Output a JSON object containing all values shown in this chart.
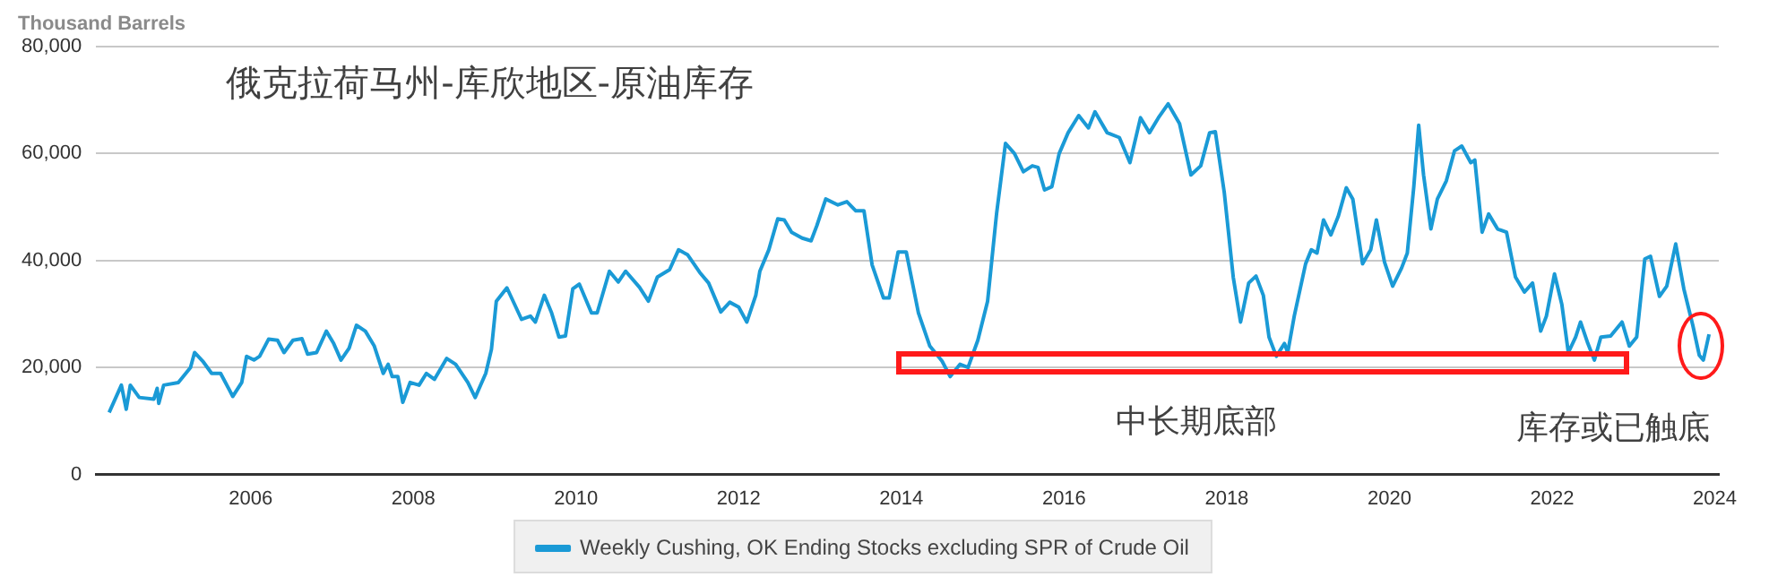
{
  "chart_data": {
    "type": "line",
    "title": "俄克拉荷马州-库欣地区-原油库存",
    "ylabel": "Thousand Barrels",
    "annotations": [
      "中长期底部",
      "库存或已触底"
    ],
    "xlim": [
      2004.1,
      2024.05
    ],
    "xticks": [
      2006,
      2008,
      2010,
      2012,
      2014,
      2016,
      2018,
      2020,
      2022,
      2024
    ],
    "ylim": [
      0,
      80000
    ],
    "yticks": [
      {
        "value": 0,
        "label": "0"
      },
      {
        "value": 20000,
        "label": "20,000"
      },
      {
        "value": 40000,
        "label": "40,000"
      },
      {
        "value": 60000,
        "label": "60,000"
      },
      {
        "value": 80000,
        "label": "80,000"
      }
    ],
    "grid": "y",
    "legend": "bottom",
    "marker": "none",
    "line_style": "solid",
    "series": [
      {
        "name": "Weekly Cushing, OK Ending Stocks excluding SPR of Crude Oil",
        "color": "#1a9ad6",
        "x": [
          2004.26,
          2004.41,
          2004.47,
          2004.52,
          2004.63,
          2004.81,
          2004.85,
          2004.87,
          2004.93,
          2005.11,
          2005.26,
          2005.31,
          2005.41,
          2005.52,
          2005.63,
          2005.78,
          2005.89,
          2005.95,
          2006.04,
          2006.11,
          2006.22,
          2006.33,
          2006.41,
          2006.52,
          2006.63,
          2006.7,
          2006.81,
          2006.93,
          2007.02,
          2007.11,
          2007.21,
          2007.3,
          2007.41,
          2007.52,
          2007.63,
          2007.69,
          2007.74,
          2007.81,
          2007.87,
          2007.96,
          2008.07,
          2008.16,
          2008.26,
          2008.41,
          2008.52,
          2008.67,
          2008.76,
          2008.89,
          2008.96,
          2009.02,
          2009.15,
          2009.26,
          2009.33,
          2009.44,
          2009.5,
          2009.61,
          2009.7,
          2009.79,
          2009.87,
          2009.96,
          2010.04,
          2010.19,
          2010.26,
          2010.41,
          2010.52,
          2010.61,
          2010.78,
          2010.89,
          2011.0,
          2011.15,
          2011.26,
          2011.37,
          2011.52,
          2011.63,
          2011.78,
          2011.89,
          2012.0,
          2012.1,
          2012.21,
          2012.26,
          2012.37,
          2012.48,
          2012.56,
          2012.65,
          2012.78,
          2012.89,
          2012.96,
          2013.07,
          2013.22,
          2013.33,
          2013.44,
          2013.54,
          2013.64,
          2013.78,
          2013.85,
          2013.96,
          2014.06,
          2014.21,
          2014.35,
          2014.5,
          2014.6,
          2014.72,
          2014.82,
          2014.94,
          2015.06,
          2015.17,
          2015.28,
          2015.39,
          2015.5,
          2015.61,
          2015.68,
          2015.76,
          2015.85,
          2015.94,
          2016.05,
          2016.18,
          2016.3,
          2016.38,
          2016.53,
          2016.68,
          2016.81,
          2016.94,
          2017.05,
          2017.16,
          2017.28,
          2017.42,
          2017.56,
          2017.68,
          2017.79,
          2017.86,
          2017.97,
          2018.08,
          2018.17,
          2018.27,
          2018.36,
          2018.45,
          2018.52,
          2018.61,
          2018.71,
          2018.75,
          2018.83,
          2018.97,
          2019.04,
          2019.11,
          2019.19,
          2019.28,
          2019.37,
          2019.47,
          2019.55,
          2019.67,
          2019.77,
          2019.84,
          2019.94,
          2020.04,
          2020.15,
          2020.22,
          2020.3,
          2020.36,
          2020.42,
          2020.51,
          2020.59,
          2020.7,
          2020.8,
          2020.89,
          2021.0,
          2021.05,
          2021.14,
          2021.22,
          2021.33,
          2021.44,
          2021.55,
          2021.66,
          2021.76,
          2021.86,
          2021.93,
          2022.03,
          2022.12,
          2022.2,
          2022.29,
          2022.35,
          2022.44,
          2022.52,
          2022.6,
          2022.72,
          2022.86,
          2022.95,
          2023.04,
          2023.14,
          2023.21,
          2023.32,
          2023.41,
          2023.52,
          2023.62,
          2023.73,
          2023.81,
          2023.86,
          2023.93
        ],
        "values": [
          11600,
          16700,
          12200,
          16700,
          14400,
          14100,
          16100,
          13300,
          16700,
          17200,
          20000,
          22800,
          21200,
          18900,
          18900,
          14600,
          17200,
          22100,
          21400,
          22100,
          25300,
          25100,
          22800,
          25100,
          25400,
          22500,
          22800,
          26800,
          24500,
          21400,
          23600,
          27900,
          26800,
          24000,
          18900,
          20600,
          18300,
          18300,
          13500,
          17200,
          16700,
          18900,
          17800,
          21700,
          20600,
          17200,
          14400,
          18900,
          23400,
          32400,
          34900,
          31300,
          29000,
          29600,
          28500,
          33500,
          30200,
          25700,
          25900,
          34700,
          35600,
          30200,
          30200,
          38000,
          36000,
          38000,
          35000,
          32400,
          36900,
          38300,
          42000,
          41100,
          37800,
          35800,
          30400,
          32200,
          31300,
          28500,
          33500,
          38000,
          42000,
          47800,
          47600,
          45300,
          44200,
          43700,
          46500,
          51500,
          50400,
          51000,
          49300,
          49300,
          39200,
          33000,
          33000,
          41600,
          41600,
          30200,
          24000,
          21200,
          18300,
          20600,
          20000,
          25100,
          32400,
          48700,
          61900,
          60000,
          56600,
          57700,
          57400,
          53200,
          53800,
          60000,
          63900,
          67100,
          64800,
          67800,
          63900,
          63000,
          58300,
          66700,
          63900,
          66700,
          69300,
          65600,
          56000,
          57700,
          63900,
          64100,
          52700,
          36900,
          28500,
          35800,
          37100,
          33500,
          25700,
          22100,
          24500,
          22800,
          29600,
          39400,
          42000,
          41400,
          47600,
          44800,
          48200,
          53600,
          51500,
          39400,
          42000,
          47600,
          39700,
          35200,
          38600,
          41400,
          53800,
          65300,
          56000,
          45900,
          51500,
          54900,
          60500,
          61400,
          58300,
          58800,
          45300,
          48700,
          45900,
          45300,
          36900,
          34100,
          35800,
          26800,
          29600,
          37500,
          31800,
          22800,
          25700,
          28500,
          24500,
          21400,
          25700,
          25900,
          28500,
          24000,
          25700,
          40300,
          40800,
          33300,
          35200,
          43100,
          34700,
          27900,
          22300,
          21400,
          26200
        ]
      }
    ]
  }
}
